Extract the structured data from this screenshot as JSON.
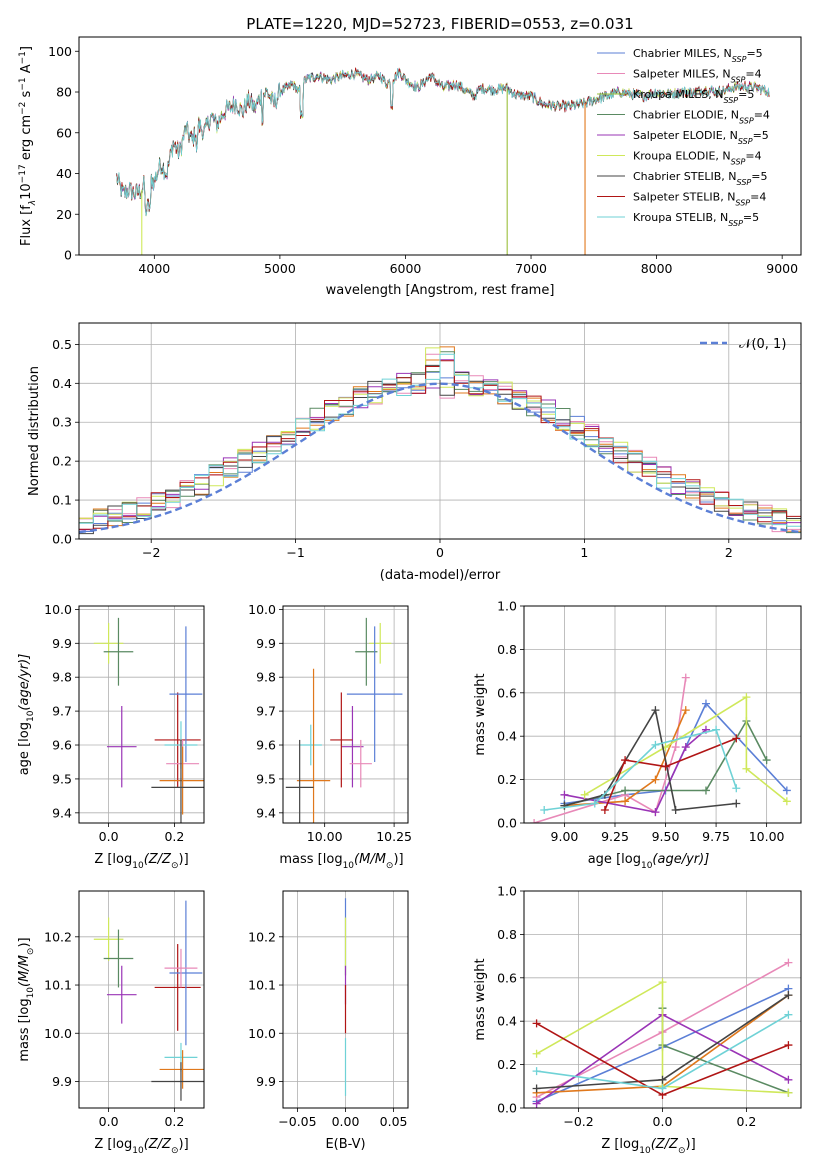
{
  "colors": {
    "chabrier_miles": "#5b7fd6",
    "salpeter_miles": "#e889b8",
    "kroupa_miles": "#9bbf3a",
    "chabrier_elodie": "#5a8a62",
    "salpeter_elodie": "#9a34b6",
    "kroupa_elodie": "#cfe85a",
    "chabrier_stelib": "#444444",
    "salpeter_stelib": "#b01515",
    "kroupa_stelib": "#6fd2d6",
    "orange": "#e0781c"
  },
  "chart_data": [
    {
      "id": "spectrum",
      "type": "line",
      "title": "PLATE=1220, MJD=52723, FIBERID=0553, z=0.031",
      "xlabel": "wavelength [Angstrom, rest frame]",
      "ylabel_main": "Flux [f",
      "ylabel_sub": "λ",
      "ylabel_rest": "10",
      "ylabel_exp1": "−17",
      "ylabel_mid": " erg cm",
      "ylabel_exp2": "−2",
      "ylabel_mid2": " s",
      "ylabel_exp3": "−1",
      "ylabel_mid3": " A",
      "ylabel_exp4": "−1",
      "ylabel_end": "]",
      "xlim": [
        3400,
        9150
      ],
      "ylim": [
        0,
        107
      ],
      "xticks": [
        4000,
        5000,
        6000,
        7000,
        8000,
        9000
      ],
      "yticks": [
        0,
        20,
        40,
        60,
        80,
        100
      ],
      "legend_position": "upper right",
      "series": [
        {
          "name": "Chabrier MILES, N",
          "sub": "SSP",
          "suffix": "=5",
          "color": "#5b7fd6"
        },
        {
          "name": "Salpeter MILES, N",
          "sub": "SSP",
          "suffix": "=4",
          "color": "#e889b8"
        },
        {
          "name": "Kroupa MILES, N",
          "sub": "SSP",
          "suffix": "=5",
          "color": "#9bbf3a"
        },
        {
          "name": "Chabrier ELODIE, N",
          "sub": "SSP",
          "suffix": "=4",
          "color": "#5a8a62"
        },
        {
          "name": "Salpeter ELODIE, N",
          "sub": "SSP",
          "suffix": "=5",
          "color": "#9a34b6"
        },
        {
          "name": "Kroupa ELODIE, N",
          "sub": "SSP",
          "suffix": "=4",
          "color": "#cfe85a"
        },
        {
          "name": "Chabrier STELIB, N",
          "sub": "SSP",
          "suffix": "=5",
          "color": "#444444"
        },
        {
          "name": "Salpeter STELIB, N",
          "sub": "SSP",
          "suffix": "=4",
          "color": "#b01515"
        },
        {
          "name": "Kroupa STELIB, N",
          "sub": "SSP",
          "suffix": "=5",
          "color": "#6fd2d6"
        }
      ],
      "envelope": {
        "x": [
          3700,
          3750,
          3800,
          3850,
          3900,
          3950,
          4000,
          4050,
          4100,
          4150,
          4200,
          4250,
          4300,
          4350,
          4400,
          4450,
          4500,
          4550,
          4600,
          4650,
          4700,
          4750,
          4800,
          4850,
          4900,
          4950,
          5000,
          5100,
          5150,
          5200,
          5300,
          5400,
          5500,
          5600,
          5700,
          5800,
          5850,
          5900,
          5950,
          6000,
          6100,
          6200,
          6300,
          6400,
          6500,
          6550,
          6600,
          6700,
          6800,
          6900,
          7000,
          7100,
          7200,
          7300,
          7400,
          7500,
          7600,
          7700,
          7800,
          7900,
          8000,
          8100,
          8200,
          8300,
          8400,
          8500,
          8600,
          8700,
          8800,
          8900
        ],
        "y": [
          38,
          30,
          32,
          30,
          32,
          38,
          36,
          45,
          40,
          55,
          50,
          62,
          56,
          64,
          60,
          68,
          64,
          70,
          72,
          75,
          70,
          76,
          72,
          78,
          80,
          74,
          80,
          84,
          80,
          86,
          88,
          86,
          88,
          89,
          86,
          88,
          84,
          86,
          90,
          86,
          82,
          88,
          82,
          84,
          80,
          78,
          82,
          81,
          82,
          78,
          78,
          74,
          73,
          73,
          74,
          76,
          78,
          80,
          79,
          78,
          80,
          79,
          80,
          80,
          81,
          80,
          82,
          83,
          82,
          80
        ]
      },
      "drops": [
        {
          "x": 3900,
          "y": 0,
          "color": "#cfe85a"
        },
        {
          "x": 6810,
          "y": 0,
          "color": "#9bbf3a"
        },
        {
          "x": 7430,
          "y": 0,
          "color": "#e0781c"
        }
      ]
    },
    {
      "id": "residuals",
      "type": "step",
      "xlabel": "(data-model)/error",
      "ylabel": "Normed distribution",
      "xlim": [
        -2.5,
        2.5
      ],
      "ylim": [
        0,
        0.555
      ],
      "xticks": [
        -2,
        -1,
        0,
        1,
        2
      ],
      "xtick_labels": [
        "−2",
        "−1",
        "0",
        "1",
        "2"
      ],
      "yticks": [
        0.0,
        0.1,
        0.2,
        0.3,
        0.4,
        0.5
      ],
      "ytick_labels": [
        "0.0",
        "0.1",
        "0.2",
        "0.3",
        "0.4",
        "0.5"
      ],
      "legend": "𝒩(0, 1)",
      "normal_color": "#5b7fd6",
      "bin_edges_start": -2.5,
      "bin_width": 0.1,
      "hist_colors": [
        "#5b7fd6",
        "#e889b8",
        "#e0781c",
        "#5a8a62",
        "#9a34b6",
        "#cfe85a",
        "#444444",
        "#b01515",
        "#6fd2d6"
      ]
    },
    {
      "id": "age-vs-Z",
      "type": "errorbar",
      "xlabel": "Z [log",
      "xlabel_sub": "10",
      "xlabel_end": "(Z/Z",
      "xlabel_sun": "⊙",
      "xlabel_close": ")]",
      "ylabel": "age  [log",
      "ylabel_sub": "10",
      "ylabel_end": "(age/yr)]",
      "xlim": [
        -0.09,
        0.29
      ],
      "ylim": [
        9.37,
        10.01
      ],
      "xticks": [
        0.0,
        0.2
      ],
      "xtick_labels": [
        "0.0",
        "0.2"
      ],
      "yticks": [
        9.4,
        9.5,
        9.6,
        9.7,
        9.8,
        9.9,
        10.0
      ],
      "ytick_labels": [
        "9.4",
        "9.5",
        "9.6",
        "9.7",
        "9.8",
        "9.9",
        "10.0"
      ],
      "points": [
        {
          "x": 0.0,
          "xe": 0.045,
          "y": 9.9,
          "ye": 0.06,
          "color": "#cfe85a"
        },
        {
          "x": 0.03,
          "xe": 0.045,
          "y": 9.875,
          "ye": 0.1,
          "color": "#5a8a62"
        },
        {
          "x": 0.04,
          "xe": 0.045,
          "y": 9.595,
          "ye": 0.12,
          "color": "#9a34b6"
        },
        {
          "x": 0.21,
          "xe": 0.07,
          "y": 9.615,
          "ye": 0.14,
          "color": "#b01515"
        },
        {
          "x": 0.235,
          "xe": 0.05,
          "y": 9.75,
          "ye": 0.2,
          "color": "#5b7fd6"
        },
        {
          "x": 0.22,
          "xe": 0.05,
          "y": 9.6,
          "ye": 0.07,
          "color": "#6fd2d6"
        },
        {
          "x": 0.225,
          "xe": 0.05,
          "y": 9.545,
          "ye": 0.07,
          "color": "#e889b8"
        },
        {
          "x": 0.225,
          "xe": 0.07,
          "y": 9.495,
          "ye": 0.1,
          "color": "#e0781c"
        },
        {
          "x": 0.22,
          "xe": 0.09,
          "y": 9.475,
          "ye": 0.14,
          "color": "#444444"
        }
      ]
    },
    {
      "id": "age-vs-mass",
      "type": "errorbar",
      "xlabel": "mass [log",
      "xlabel_sub": "10",
      "xlabel_end": "(M/M",
      "xlabel_sun": "⊙",
      "xlabel_close": ")]",
      "xlim": [
        9.85,
        10.3
      ],
      "ylim": [
        9.37,
        10.01
      ],
      "xticks": [
        10.0,
        10.25
      ],
      "xtick_labels": [
        "10.00",
        "10.25"
      ],
      "yticks": [
        9.4,
        9.5,
        9.6,
        9.7,
        9.8,
        9.9,
        10.0
      ],
      "ytick_labels": [
        "9.4",
        "9.5",
        "9.6",
        "9.7",
        "9.8",
        "9.9",
        "10.0"
      ],
      "points": [
        {
          "x": 10.2,
          "xe": 0.04,
          "y": 9.9,
          "ye": 0.06,
          "color": "#cfe85a"
        },
        {
          "x": 10.15,
          "xe": 0.04,
          "y": 9.875,
          "ye": 0.1,
          "color": "#5a8a62"
        },
        {
          "x": 10.18,
          "xe": 0.1,
          "y": 9.75,
          "ye": 0.2,
          "color": "#5b7fd6"
        },
        {
          "x": 10.1,
          "xe": 0.04,
          "y": 9.595,
          "ye": 0.12,
          "color": "#9a34b6"
        },
        {
          "x": 10.13,
          "xe": 0.04,
          "y": 9.545,
          "ye": 0.07,
          "color": "#e889b8"
        },
        {
          "x": 10.06,
          "xe": 0.04,
          "y": 9.615,
          "ye": 0.14,
          "color": "#b01515"
        },
        {
          "x": 9.95,
          "xe": 0.04,
          "y": 9.6,
          "ye": 0.06,
          "color": "#6fd2d6"
        },
        {
          "x": 9.96,
          "xe": 0.06,
          "y": 9.495,
          "ye": 0.33,
          "color": "#e0781c"
        },
        {
          "x": 9.91,
          "xe": 0.05,
          "y": 9.475,
          "ye": 0.14,
          "color": "#444444"
        }
      ]
    },
    {
      "id": "weight-vs-age",
      "type": "line",
      "xlabel": "age  [log",
      "xlabel_sub": "10",
      "xlabel_end": "(age/yr)]",
      "ylabel": "mass weight",
      "xlim": [
        8.8,
        10.17
      ],
      "ylim": [
        0,
        1
      ],
      "xticks": [
        9.0,
        9.25,
        9.5,
        9.75,
        10.0
      ],
      "xtick_labels": [
        "9.00",
        "9.25",
        "9.50",
        "9.75",
        "10.00"
      ],
      "yticks": [
        0.0,
        0.2,
        0.4,
        0.6,
        0.8,
        1.0
      ],
      "ytick_labels": [
        "0.0",
        "0.2",
        "0.4",
        "0.6",
        "0.8",
        "1.0"
      ],
      "series": [
        {
          "color": "#5b7fd6",
          "x": [
            9.0,
            9.3,
            9.5,
            9.7,
            10.1
          ],
          "y": [
            0.09,
            0.13,
            0.15,
            0.55,
            0.15
          ]
        },
        {
          "color": "#e889b8",
          "x": [
            8.85,
            9.3,
            9.45,
            9.55,
            9.6
          ],
          "y": [
            0.0,
            0.13,
            0.05,
            0.35,
            0.67
          ]
        },
        {
          "color": "#e0781c",
          "x": [
            9.0,
            9.3,
            9.45,
            9.6
          ],
          "y": [
            0.08,
            0.1,
            0.2,
            0.52
          ]
        },
        {
          "color": "#5a8a62",
          "x": [
            9.0,
            9.3,
            9.7,
            9.9,
            10.0
          ],
          "y": [
            0.08,
            0.15,
            0.15,
            0.47,
            0.29
          ]
        },
        {
          "color": "#9a34b6",
          "x": [
            9.0,
            9.45,
            9.6,
            9.7
          ],
          "y": [
            0.13,
            0.05,
            0.35,
            0.43
          ]
        },
        {
          "color": "#cfe85a",
          "x": [
            9.1,
            9.5,
            9.9,
            9.9,
            10.1
          ],
          "y": [
            0.13,
            0.35,
            0.58,
            0.25,
            0.1
          ]
        },
        {
          "color": "#444444",
          "x": [
            9.0,
            9.2,
            9.45,
            9.55,
            9.85
          ],
          "y": [
            0.08,
            0.13,
            0.52,
            0.06,
            0.09
          ]
        },
        {
          "color": "#b01515",
          "x": [
            9.2,
            9.3,
            9.5,
            9.85
          ],
          "y": [
            0.06,
            0.29,
            0.26,
            0.39
          ]
        },
        {
          "color": "#6fd2d6",
          "x": [
            8.9,
            9.15,
            9.45,
            9.75,
            9.85
          ],
          "y": [
            0.06,
            0.09,
            0.36,
            0.43,
            0.16
          ]
        }
      ]
    },
    {
      "id": "mass-vs-Z",
      "type": "errorbar",
      "xlabel": "Z [log",
      "xlabel_sub": "10",
      "xlabel_end": "(Z/Z",
      "xlabel_sun": "⊙",
      "xlabel_close": ")]",
      "ylabel": "mass [log",
      "ylabel_sub": "10",
      "ylabel_end": "(M/M",
      "ylabel_sun": "⊙",
      "ylabel_close": ")]",
      "xlim": [
        -0.09,
        0.29
      ],
      "ylim": [
        9.845,
        10.295
      ],
      "xticks": [
        0.0,
        0.2
      ],
      "xtick_labels": [
        "0.0",
        "0.2"
      ],
      "yticks": [
        9.9,
        10.0,
        10.1,
        10.2
      ],
      "ytick_labels": [
        "9.9",
        "10.0",
        "10.1",
        "10.2"
      ],
      "points": [
        {
          "x": 0.0,
          "xe": 0.045,
          "y": 10.195,
          "ye": 0.045,
          "color": "#cfe85a"
        },
        {
          "x": 0.03,
          "xe": 0.045,
          "y": 10.155,
          "ye": 0.06,
          "color": "#5a8a62"
        },
        {
          "x": 0.04,
          "xe": 0.045,
          "y": 10.08,
          "ye": 0.06,
          "color": "#9a34b6"
        },
        {
          "x": 0.21,
          "xe": 0.07,
          "y": 10.095,
          "ye": 0.09,
          "color": "#b01515"
        },
        {
          "x": 0.235,
          "xe": 0.05,
          "y": 10.125,
          "ye": 0.15,
          "color": "#5b7fd6"
        },
        {
          "x": 0.22,
          "xe": 0.05,
          "y": 10.135,
          "ye": 0.04,
          "color": "#e889b8"
        },
        {
          "x": 0.22,
          "xe": 0.05,
          "y": 9.95,
          "ye": 0.03,
          "color": "#6fd2d6"
        },
        {
          "x": 0.225,
          "xe": 0.07,
          "y": 9.925,
          "ye": 0.04,
          "color": "#e0781c"
        },
        {
          "x": 0.22,
          "xe": 0.09,
          "y": 9.9,
          "ye": 0.04,
          "color": "#444444"
        }
      ]
    },
    {
      "id": "mass-vs-EBV",
      "type": "errorbar",
      "xlabel": "E(B-V)",
      "xlim": [
        -0.065,
        0.065
      ],
      "ylim": [
        9.845,
        10.295
      ],
      "xticks": [
        -0.05,
        0.0,
        0.05
      ],
      "xtick_labels": [
        "−0.05",
        "0.00",
        "0.05"
      ],
      "yticks": [
        9.9,
        10.0,
        10.1,
        10.2
      ],
      "ytick_labels": [
        "9.9",
        "10.0",
        "10.1",
        "10.2"
      ],
      "points": [
        {
          "x": 0.0,
          "xe": 0.0,
          "y": 10.2,
          "ye": 0.08,
          "color": "#5b7fd6"
        },
        {
          "x": 0.0,
          "xe": 0.0,
          "y": 10.18,
          "ye": 0.06,
          "color": "#cfe85a"
        },
        {
          "x": 0.0,
          "xe": 0.0,
          "y": 10.1,
          "ye": 0.04,
          "color": "#9a34b6"
        },
        {
          "x": 0.0,
          "xe": 0.0,
          "y": 10.05,
          "ye": 0.05,
          "color": "#b01515"
        },
        {
          "x": 0.0,
          "xe": 0.0,
          "y": 9.93,
          "ye": 0.06,
          "color": "#6fd2d6"
        }
      ]
    },
    {
      "id": "weight-vs-Z",
      "type": "line",
      "xlabel": "Z [log",
      "xlabel_sub": "10",
      "xlabel_end": "(Z/Z",
      "xlabel_sun": "⊙",
      "xlabel_close": ")]",
      "ylabel": "mass weight",
      "xlim": [
        -0.33,
        0.33
      ],
      "ylim": [
        0,
        1
      ],
      "xticks": [
        -0.2,
        0.0,
        0.2
      ],
      "xtick_labels": [
        "−0.2",
        "0.0",
        "0.2"
      ],
      "yticks": [
        0.0,
        0.2,
        0.4,
        0.6,
        0.8,
        1.0
      ],
      "ytick_labels": [
        "0.0",
        "0.2",
        "0.4",
        "0.6",
        "0.8",
        "1.0"
      ],
      "series": [
        {
          "color": "#5b7fd6",
          "x": [
            -0.3,
            0.0,
            0.3
          ],
          "y": [
            0.03,
            0.28,
            0.55
          ]
        },
        {
          "color": "#e889b8",
          "x": [
            -0.3,
            0.0,
            0.3
          ],
          "y": [
            0.05,
            0.35,
            0.67
          ]
        },
        {
          "color": "#e0781c",
          "x": [
            -0.3,
            0.0,
            0.3
          ],
          "y": [
            0.07,
            0.1,
            0.52
          ]
        },
        {
          "color": "#5a8a62",
          "x": [
            0.0,
            0.0,
            0.3
          ],
          "y": [
            0.46,
            0.29,
            0.07
          ]
        },
        {
          "color": "#9a34b6",
          "x": [
            -0.3,
            0.0,
            0.3
          ],
          "y": [
            0.02,
            0.43,
            0.13
          ]
        },
        {
          "color": "#cfe85a",
          "x": [
            -0.3,
            0.0,
            0.0,
            0.3
          ],
          "y": [
            0.25,
            0.58,
            0.1,
            0.07
          ]
        },
        {
          "color": "#444444",
          "x": [
            -0.3,
            0.0,
            0.3
          ],
          "y": [
            0.09,
            0.13,
            0.52
          ]
        },
        {
          "color": "#b01515",
          "x": [
            -0.3,
            0.0,
            0.3
          ],
          "y": [
            0.39,
            0.06,
            0.29
          ]
        },
        {
          "color": "#6fd2d6",
          "x": [
            -0.3,
            0.0,
            0.3
          ],
          "y": [
            0.17,
            0.09,
            0.43
          ]
        }
      ]
    }
  ]
}
